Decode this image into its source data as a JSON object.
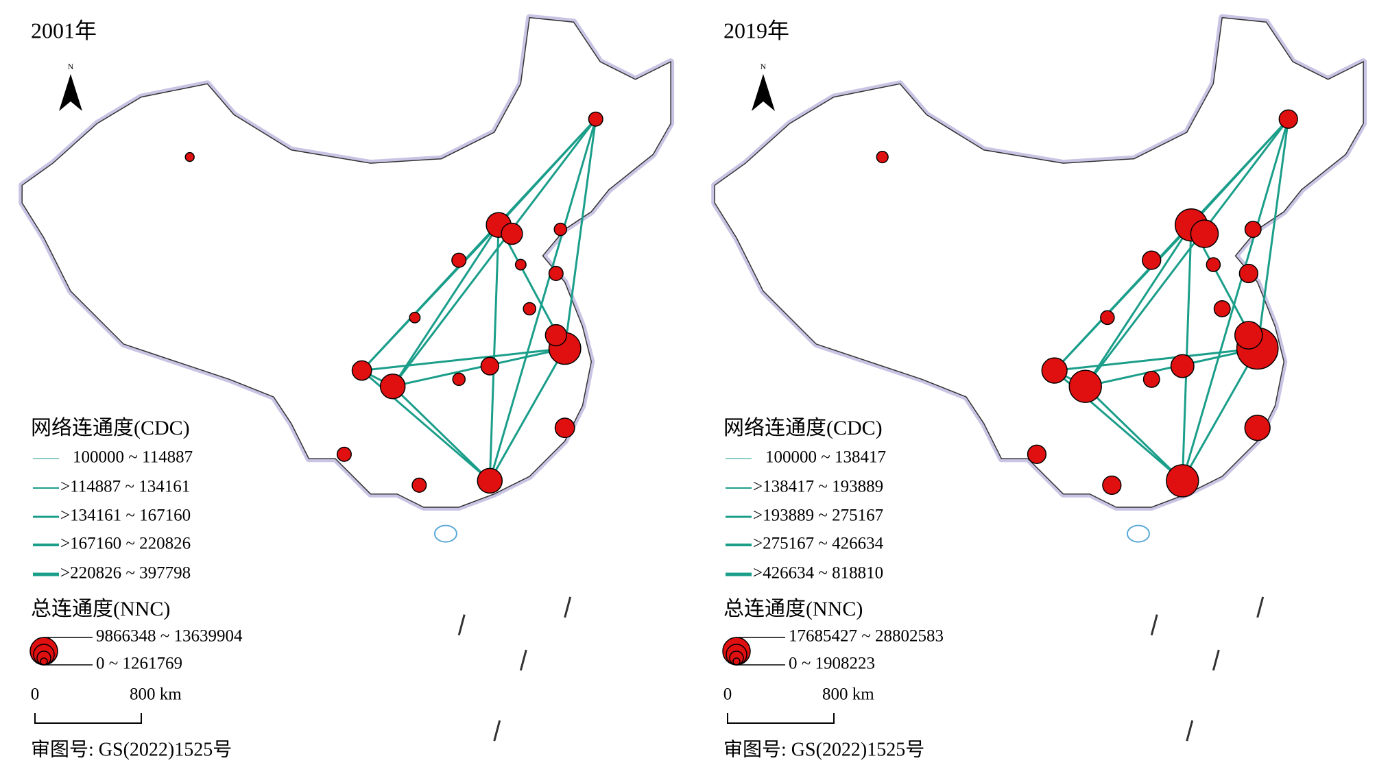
{
  "panels": [
    {
      "title": "2001年",
      "north": "N",
      "line_legend": {
        "title": "网络连通度(CDC)",
        "items": [
          "100000 ~ 114887",
          ">114887 ~ 134161",
          ">134161 ~ 167160",
          ">167160 ~ 220826",
          ">220826 ~ 397798"
        ]
      },
      "circle_legend": {
        "title": "总连通度(NNC)",
        "items": [
          "9866348 ~ 13639904",
          "0 ~ 1261769"
        ]
      },
      "scale": {
        "start": "0",
        "end": "800 km"
      },
      "review": "审图号: GS(2022)1525号"
    },
    {
      "title": "2019年",
      "north": "N",
      "line_legend": {
        "title": "网络连通度(CDC)",
        "items": [
          "100000 ~ 138417",
          ">138417 ~ 193889",
          ">193889 ~ 275167",
          ">275167 ~ 426634",
          ">426634 ~ 818810"
        ]
      },
      "circle_legend": {
        "title": "总连通度(NNC)",
        "items": [
          "17685427 ~ 28802583",
          "0 ~ 1908223"
        ]
      },
      "scale": {
        "start": "0",
        "end": "800 km"
      },
      "review": "审图号: GS(2022)1525号"
    }
  ]
}
